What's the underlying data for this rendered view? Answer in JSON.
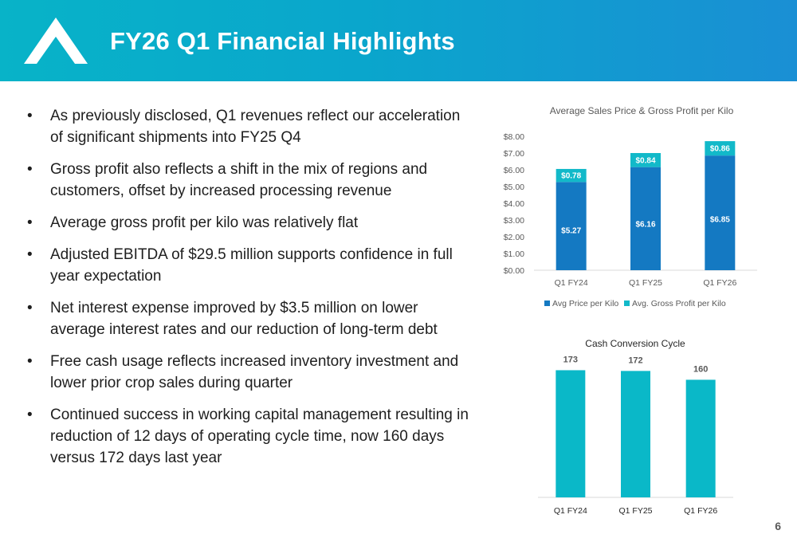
{
  "header": {
    "title": "FY26 Q1 Financial Highlights",
    "logo_icon": "peak-chevron-icon"
  },
  "bullets": [
    "As previously disclosed, Q1 revenues reflect our acceleration of significant shipments into FY25 Q4",
    "Gross profit also reflects a shift in the mix of regions and customers, offset by increased processing revenue",
    "Average gross profit per kilo was relatively flat",
    "Adjusted EBITDA of $29.5 million supports confidence in full year expectation",
    "Net interest expense improved by $3.5 million on lower average interest rates and our reduction of long-term debt",
    "Free cash usage reflects increased inventory investment and lower prior crop sales during quarter",
    "Continued success in working capital management resulting in reduction of 12 days of operating cycle time, now 160 days versus 172 days last year"
  ],
  "page_number": "6",
  "colors": {
    "header_start": "#08b3c8",
    "header_end": "#1a8fd4",
    "price_bar": "#1479c2",
    "profit_bar": "#12b9c9",
    "cycle_bar": "#0ab8c8"
  },
  "chart_data": [
    {
      "type": "bar",
      "stacked": true,
      "title": "Average Sales Price & Gross Profit per Kilo",
      "categories": [
        "Q1 FY24",
        "Q1 FY25",
        "Q1 FY26"
      ],
      "series": [
        {
          "name": "Avg Price per Kilo",
          "values": [
            5.27,
            6.16,
            6.85
          ],
          "labels": [
            "$5.27",
            "$6.16",
            "$6.85"
          ],
          "color": "#1479c2"
        },
        {
          "name": "Avg. Gross Profit per Kilo",
          "values": [
            0.78,
            0.84,
            0.86
          ],
          "labels": [
            "$0.78",
            "$0.84",
            "$0.86"
          ],
          "color": "#12b9c9"
        }
      ],
      "ylim": [
        0,
        8
      ],
      "yticks": [
        0,
        1,
        2,
        3,
        4,
        5,
        6,
        7,
        8
      ],
      "ytick_labels": [
        "$0.00",
        "$1.00",
        "$2.00",
        "$3.00",
        "$4.00",
        "$5.00",
        "$6.00",
        "$7.00",
        "$8.00"
      ],
      "legend_position": "bottom",
      "grid": false
    },
    {
      "type": "bar",
      "title": "Cash Conversion Cycle",
      "categories": [
        "Q1 FY24",
        "Q1 FY25",
        "Q1 FY26"
      ],
      "values": [
        173,
        172,
        160
      ],
      "labels": [
        "173",
        "172",
        "160"
      ],
      "color": "#0ab8c8",
      "ylim": [
        0,
        180
      ],
      "yaxis_visible": false,
      "grid": false
    }
  ]
}
